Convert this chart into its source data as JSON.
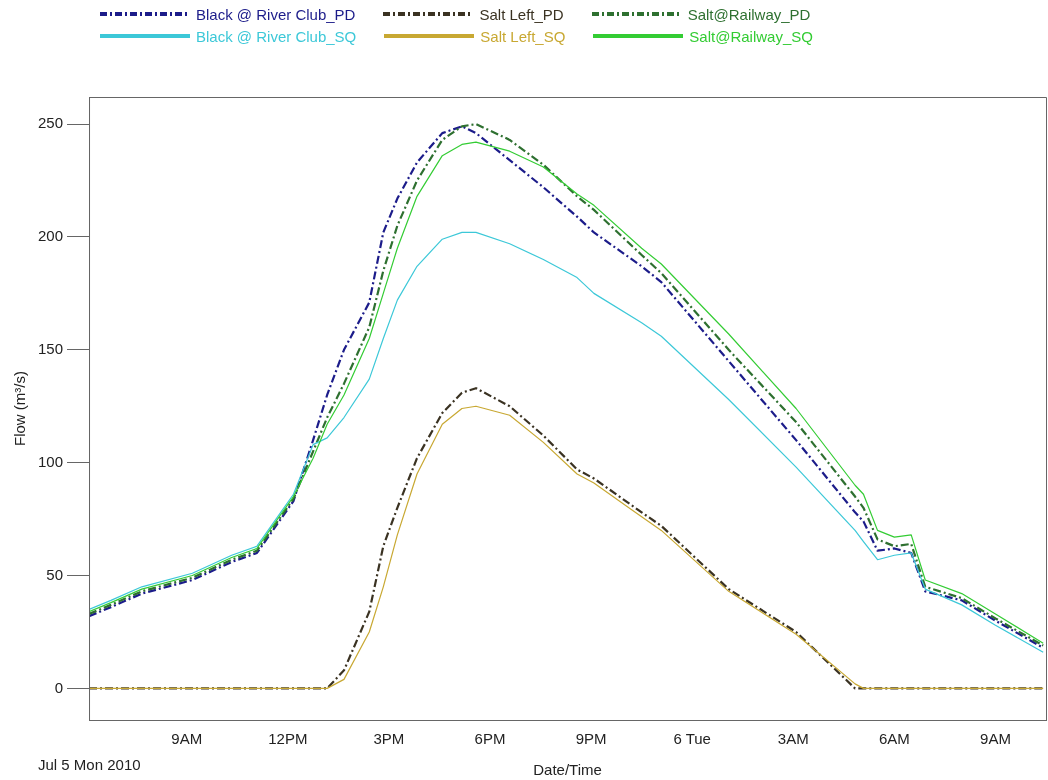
{
  "chart_data": {
    "type": "line",
    "xlabel": "Date/Time",
    "ylabel": "Flow (m³/s)",
    "annotations": [
      "Jul 5 Mon 2010"
    ],
    "x": [
      "2010-07-05T06:06",
      "2010-07-05T06:45",
      "2010-07-05T07:40",
      "2010-07-05T09:10",
      "2010-07-05T10:20",
      "2010-07-05T11:05",
      "2010-07-05T12:10",
      "2010-07-05T12:45",
      "2010-07-05T13:10",
      "2010-07-05T13:40",
      "2010-07-05T14:25",
      "2010-07-05T14:50",
      "2010-07-05T15:15",
      "2010-07-05T15:50",
      "2010-07-05T16:35",
      "2010-07-05T17:10",
      "2010-07-05T17:35",
      "2010-07-05T18:35",
      "2010-07-05T19:35",
      "2010-07-05T20:35",
      "2010-07-05T21:05",
      "2010-07-05T22:30",
      "2010-07-05T23:05",
      "2010-07-06T01:05",
      "2010-07-06T03:05",
      "2010-07-06T04:50",
      "2010-07-06T05:05",
      "2010-07-06T05:30",
      "2010-07-06T06:00",
      "2010-07-06T06:30",
      "2010-07-06T06:55",
      "2010-07-06T08:00",
      "2010-07-06T09:00",
      "2010-07-06T10:25"
    ],
    "series": [
      {
        "name": "Black @ River Club_PD",
        "color": "#1c1c8a",
        "line_style": "dashed",
        "values": [
          32,
          36,
          42,
          48,
          56,
          60,
          83,
          110,
          130,
          150,
          171,
          202,
          217,
          233,
          246,
          249,
          246,
          234,
          222,
          209,
          202,
          187,
          180,
          145,
          110,
          78,
          74,
          61,
          62,
          60,
          43,
          39,
          30,
          18
        ]
      },
      {
        "name": "Salt Left_PD",
        "color": "#3a3222",
        "line_style": "dashed",
        "values": [
          0,
          0,
          0,
          0,
          0,
          0,
          0,
          0,
          0,
          8,
          34,
          63,
          80,
          102,
          122,
          131,
          133,
          125,
          112,
          97,
          93,
          78,
          72,
          44,
          25,
          0,
          0,
          0,
          0,
          0,
          0,
          0,
          0,
          0
        ]
      },
      {
        "name": "Salt@Railway_PD",
        "color": "#2e7030",
        "line_style": "dashed",
        "values": [
          33,
          37,
          43,
          49,
          57,
          61,
          84,
          105,
          120,
          135,
          160,
          185,
          205,
          225,
          243,
          249,
          250,
          243,
          232,
          218,
          212,
          192,
          184,
          150,
          118,
          85,
          80,
          66,
          63,
          64,
          45,
          40,
          31,
          19
        ]
      },
      {
        "name": "Black @ River Club_SQ",
        "color": "#3cc8d8",
        "line_style": "solid",
        "values": [
          35,
          39,
          45,
          51,
          59,
          63,
          86,
          108,
          111,
          120,
          137,
          155,
          172,
          187,
          199,
          202,
          202,
          197,
          190,
          182,
          175,
          162,
          156,
          128,
          98,
          70,
          65,
          57,
          59,
          60,
          44,
          37,
          28,
          16
        ]
      },
      {
        "name": "Salt Left_SQ",
        "color": "#c8a832",
        "line_style": "solid",
        "values": [
          0,
          0,
          0,
          0,
          0,
          0,
          0,
          0,
          0,
          4,
          25,
          45,
          68,
          95,
          117,
          124,
          125,
          121,
          109,
          95,
          91,
          76,
          70,
          43,
          24,
          2,
          0,
          0,
          0,
          0,
          0,
          0,
          0,
          0
        ]
      },
      {
        "name": "Salt@Railway_SQ",
        "color": "#33cc33",
        "line_style": "solid",
        "values": [
          34,
          38,
          44,
          50,
          58,
          62,
          85,
          102,
          117,
          130,
          155,
          175,
          195,
          218,
          236,
          241,
          242,
          238,
          231,
          219,
          214,
          195,
          188,
          157,
          124,
          90,
          86,
          70,
          67,
          68,
          48,
          42,
          33,
          20
        ]
      }
    ],
    "xlim": [
      "2010-07-05T06:06",
      "2010-07-06T10:30"
    ],
    "xticks": [
      {
        "value": "2010-07-05T09:00",
        "label": "9AM"
      },
      {
        "value": "2010-07-05T12:00",
        "label": "12PM"
      },
      {
        "value": "2010-07-05T15:00",
        "label": "3PM"
      },
      {
        "value": "2010-07-05T18:00",
        "label": "6PM"
      },
      {
        "value": "2010-07-05T21:00",
        "label": "9PM"
      },
      {
        "value": "2010-07-06T00:00",
        "label": "6 Tue"
      },
      {
        "value": "2010-07-06T03:00",
        "label": "3AM"
      },
      {
        "value": "2010-07-06T06:00",
        "label": "6AM"
      },
      {
        "value": "2010-07-06T09:00",
        "label": "9AM"
      }
    ],
    "ylim": [
      -14,
      262
    ],
    "yticks": [
      0,
      50,
      100,
      150,
      200,
      250
    ],
    "grid": false,
    "legend": "top",
    "marker": "none"
  }
}
